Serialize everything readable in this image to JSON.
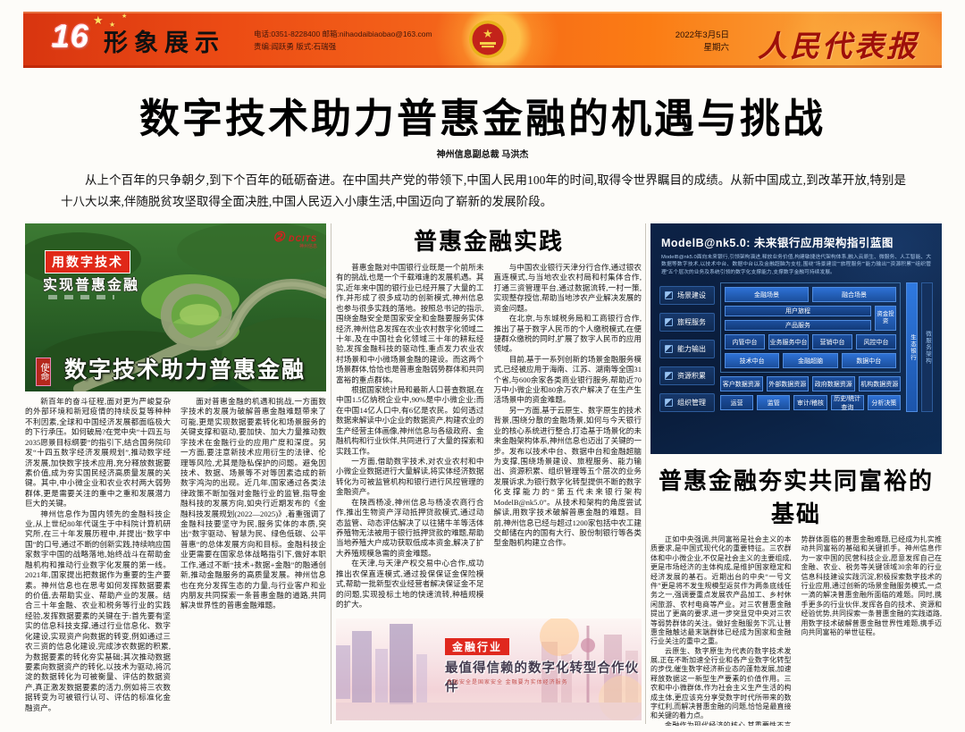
{
  "banner": {
    "page_number": "16",
    "section_name": "形象展示",
    "contact_line1": "电话:0351-8228400    邮箱:nihaodaibiaobao@163.com",
    "contact_line2": "责编:阎跃勇    版式:石瑞强",
    "date_line1": "2022年3月5日",
    "date_line2": "星期六",
    "paper_name": "人民代表报",
    "accent_color": "#e8420f"
  },
  "headline": {
    "title": "数字技术助力普惠金融的机遇与挑战",
    "byline": "神州信息副总裁 马洪杰",
    "intro": "从上个百年的只争朝夕,到下个百年的砥砺奋进。在中国共产党的带领下,中国人民用100年的时间,取得令世界瞩目的成绩。从新中国成立,到改革开放,特别是十八大以来,伴随脱贫攻坚取得全面决胜,中国人民迈入小康生活,中国迈向了崭新的发展阶段。"
  },
  "left_article": {
    "photo": {
      "overlay_line1": "用数字技术",
      "overlay_line2": "实现普惠金融",
      "logo_mark": "②",
      "logo_text": "DCITS",
      "logo_sub": "神州信息",
      "caption": "数字技术助力普惠金融",
      "seal": "使命"
    },
    "paragraphs": [
      "新百年的奋斗征程,面对更为严峻复杂的外部环境和新冠疫情的持续反复等种种不利因素,全球和中国经济发展都面临极大的下行承压。如何破局?在党中央“十四五与2035愿景目标纲要”的指引下,结合国务院印发“十四五数字经济发展规划”,推动数字经济发展,加快数字技术应用,充分释放数据要素价值,成为夯实国民经济高质量发展的关键。其中,中小微企业和农业农村两大弱势群体,更是需要关注的重中之重和发展潜力巨大的关键。",
      "神州信息作为国内领先的金融科技企业,从上世纪80年代诞生于中科院计算机研究所,在三十年发展历程中,并提出“数字中国”的口号,通过不断的创新实践,持续响应国家数字中国的战略落地,始终战斗在帮助金融机构和推动行业数字化发展的第一线。2021年,国家提出把数据作为重要的生产要素。神州信息也在思考如何发挥数据要素的价值,去帮助实业、帮助产业的发展。结合三十年金融、农业和税务等行业的实践经验,发挥数据要素的关键在于:首先要有坚实的信息科技支撑,通过行业信息化、数字化建设,实现资产向数据的转变,例如通过三农三资的信息化建设,完成涉农数据的积累,为数据要素的转化夯实基础;其次推动数据要素向数据资产的转化,以技术为驱动,将沉淀的数据转化为可被衡量、评估的数据资产,真正激发数据要素的活力,例如将三农数据转变为可被银行认可、评估的标准化金融资产。",
      "面对普惠金融的机遇和挑战,一方面数字技术的发展为破解普惠金融难题带来了可能,更是实现数据要素转化和场景服务的关键支撑和驱动,要加快、加大力量推动数字技术在金融行业的应用广度和深度。另一方面,要注意新技术应用衍生的法律、伦理等风险,尤其是隐私保护的问题。避免因技术、数据、场景等不对等因素造成的新数字鸿沟的出现。近几年,国家通过各类法律政策不断加强对金融行业的监管,指导金融科技的发展方向,如央行近期发布的《金融科技发展规划(2022—2025)》,着重强调了金融科技要坚守为民,服务实体的本质,突出“数字驱动、智慧为民、绿色低碳、公平普惠”的总体发展方向和目标。金融科技企业更需要在国家总体战略指引下,做好本职工作,通过不断“技术+数据+金融”的融通创新,推动金融服务的高质量发展。神州信息也在充分发挥生态的力量,与行业客户和业内朋友共同探索一条普惠金融的道路,共同解决世界性的普惠金融难题。"
    ]
  },
  "middle_article": {
    "heading": "普惠金融实践",
    "paragraphs": [
      "普惠金融对中国银行业既是一个前所未有的挑战,也是一个千载难逢的发展机遇。其实,近年来中国的银行业已经开展了大量的工作,并形成了很多成功的创新模式,神州信息也参与很多实践的落地。按照总书记的指示,围绕金融安全是国家安全和金融要服务实体经济,神州信息发挥在农业农村数字化领域二十年,及在中国社会化领域三十年的耕耘经验,发挥金融科技的驱动性,重点发力农业农村场景和中小微场景金融的建设。而这两个场景群体,恰恰也是普惠金融弱势群体和共同富裕的重点群体。",
      "根据国家统计局和最新人口普查数据,在中国1.5亿纳税企业中,90%是中小微企业;而在中国14亿人口中,有6亿是农民。如何透过数据来解读中小企业的数据资产,构建农业的生产经营主体画像,神州信息与各级政府、金融机构和行业伙伴,共同进行了大量的探索和实践工作。",
      "一方面,借助数字技术,对农业农村和中小微企业数据进行大量解读,将实体经济数据转化为可被监管机构和银行进行风控管理的金融资产。",
      "在陕西杨凌,神州信息与杨凌农商行合作,推出生物资产浮动抵押贷款模式,通过动态监管、动态评估解决了以往猪牛羊等活体养殖物无法被用于银行抵押贷款的难题,帮助当地养殖大户成功获取低成本资金,解决了扩大养殖规模急需的资金难题。",
      "在天津,与天津产权交易中心合作,成功推出农保直连模式,通过投保保证金保险模式,帮助一批新型农业经营者解决保证金不足的问题,实现投标土地的快速流转,种植规模的扩大。",
      "与中国农业银行天津分行合作,通过银农直连模式,与当地农业农村局和村集体合作,打通三资管理平台,通过数据流转,一村一策,实现整存授信,帮助当地涉农产业解决发展的资金问题。",
      "在北京,与东城税务局和工商银行合作,推出了基于数字人民币的个人缴税模式,在便捷群众缴税的同时,扩展了数字人民币的应用领域。",
      "目前,基于一系列创新的场景金融服务模式,已经被应用于海南、江苏、湖南等全国31个省,与600余家各类商业银行服务,帮助近70万中小微企业和80余万农户解决了在生产生活场景中的资金难题。",
      "另一方面,基于云原生、数字原生的技术背景,围绕分散的金融场景,如何与今天银行业的核心系统进行整合,打造基于场景化的未来金融架构体系,神州信息也迈出了关键的一步。发布以技术中台、数据中台和金融超脑为支撑,围绕场景建设、旅程服务、能力输出、资源积累、组织管理等五个层次的业务发展诉求,为银行数字化转型提供不断的数字化支撑能力的“第五代未来银行架构ModelB@nk5.0”。从技术和架构的角度尝试解读,用数字技术破解普惠金融的难题。目前,神州信息已经与超过1200家包括中农工建交邮储在内的国有大行、股份制银行等各类型金融机构建立合作。"
    ],
    "photo": {
      "tag": "金融行业",
      "slogan": "最值得信赖的数字化转型合作伙伴",
      "sub": "金融安全是国家安全    金融要为实体经济服务"
    }
  },
  "right_article": {
    "diagram": {
      "title": "ModelB@nk5.0: 未来银行应用架构指引蓝图",
      "subtitle": "ModelB@nk5.0面向未来银行,引领架构演进,释放业务价值,构建敏捷迭代架构体系,融入云原生、微服务、人工智能、大数据等数字技术,以技术中台、数据中台以及金融超脑为支柱,围绕“场景建设”“旅程服务”“能力输出”“资源积累”“组织管理”五个层次的业务及系统引领的数字化支撑能力,支撑数字金融可持续发展。",
      "sidebar": [
        "场景建设",
        "旅程服务",
        "能力输出",
        "资源积累",
        "组织管理"
      ],
      "scene_row": [
        "金融场景",
        "融合场景"
      ],
      "journey_row": [
        "用户旅程"
      ],
      "product_row": [
        "产品服务"
      ],
      "fund_box": "资金投资",
      "vertical_right": [
        "生态银行",
        "微服务架构"
      ],
      "mid_row": [
        "内管中台",
        "业务服务中台",
        "营销中台",
        "风控中台"
      ],
      "base_row": [
        "技术中台",
        "金融超脑",
        "数据中台"
      ],
      "resource_row": [
        "客户数据资源",
        "外部数据资源",
        "政府数据资源",
        "机构数据资源"
      ],
      "manage_row": [
        "运营",
        "监管",
        "审计/稽核",
        "历史/统计查询",
        "分析决策"
      ]
    },
    "heading": "普惠金融夯实共同富裕的基础",
    "paragraphs": [
      "正如中央强调,共同富裕是社会主义的本质要求,是中国式现代化的重要特征。三农群体和中小微企业,不仅是社会主义的主要组成,更是市场经济的主体构成,是维护国家稳定和经济发展的基石。近期出台的中央“一号文件”更是将不发生规模型返贫作为两条底线任务之一,强调要重点发展农产品加工、乡村休闲旅游、农村电商等产业。对三农普惠金融提出了更高的要求,进一步突显党中央对三农等弱势群体的关注。做好金融服务下沉,让普惠金融触达最末端群体已经成为国家和金融行业关注的重中之重。",
      "云原生、数字原生为代表的数字技术发展,正在不断加速全行业和各产业数字化转型的步伐,催生数字经济新业态的蓬勃发展,加速释放数据这一新型生产要素的价值作用。三农和中小微群体,作为社会主义生产生活的构成主体,更应该充分享受数字时代所带来的数字红利,而解决普惠金融的问题,恰恰是最直接和关键的着力点。",
      "金融作为现代经济的核心,其重要性不言而喻。从脱虚向实强调金融本质是服务实体经济,再到畅通金融服务助推乡村振兴,解决弱势群体面临的普惠金融难题,已经成为扎实推动共同富裕的基础和关键抓手。神州信息作为一家中国的民营科技企业,愿意发挥自己在金融、农业、税务等关键领域30余年的行业信息科技建设实践沉淀,积极探索数字技术的行业应用,通过创新的场景金融服务模式,一点一滴的解决普惠金融所面临的难题。同时,携手更多的行业伙伴,发挥各自的技术、资源和经验优势,共同探索一条普惠金融的实践道路,用数字技术破解普惠金融世界性难题,携手迈向共同富裕的举世征程。"
    ]
  }
}
